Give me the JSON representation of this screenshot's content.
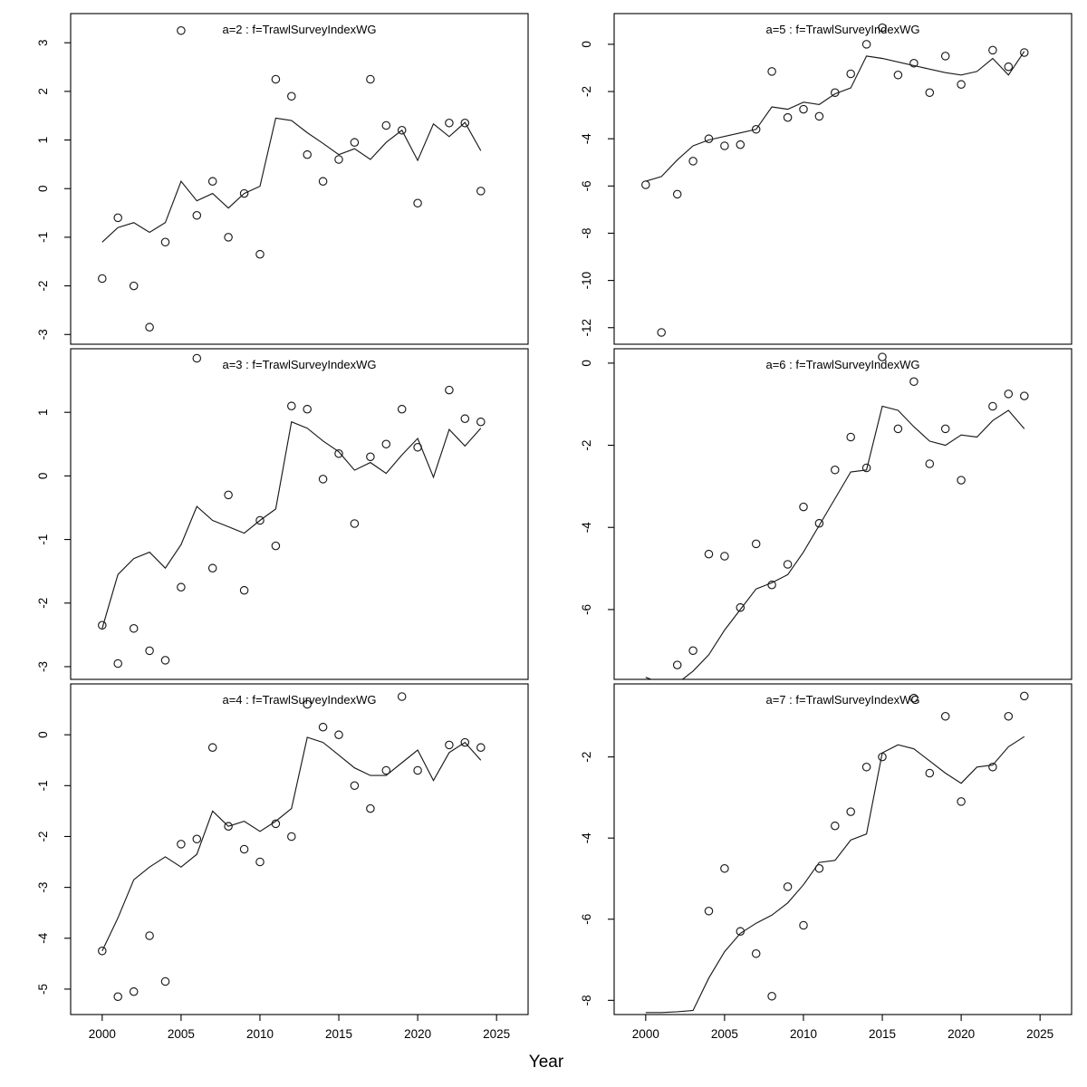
{
  "figure": {
    "xlabel": "Year",
    "background": "#ffffff",
    "colors": {
      "line": "#1a1a1a",
      "point_stroke": "#1a1a1a",
      "axis": "#000000",
      "panel_border": "#000000",
      "title_text": "#7d7d7d"
    },
    "x_tick_labels": [
      "2000",
      "2005",
      "2010",
      "2015",
      "2020",
      "2025"
    ]
  },
  "chart_data": {
    "type": "scatter",
    "description": "3x2 grid of age-specific survey index diagnostic panels: open-circle observations and fitted line per year",
    "x": [
      2000,
      2001,
      2002,
      2003,
      2004,
      2005,
      2006,
      2007,
      2008,
      2009,
      2010,
      2011,
      2012,
      2013,
      2014,
      2015,
      2016,
      2017,
      2018,
      2019,
      2020,
      2021,
      2022,
      2023,
      2024
    ],
    "xlim": [
      1998,
      2027
    ],
    "x_ticks": [
      2000,
      2005,
      2010,
      2015,
      2020,
      2025
    ],
    "xlabel": "Year",
    "legend": "none",
    "grid": "off",
    "panels": [
      {
        "title": "a=2  :  f=TrawlSurveyIndexWG",
        "row": 0,
        "col": 0,
        "ylim": [
          -3.2,
          3.6
        ],
        "y_ticks": [
          3,
          2,
          1,
          0,
          -1,
          -2,
          -3
        ],
        "obs": [
          -1.85,
          -0.6,
          -2.0,
          -2.85,
          -1.1,
          3.25,
          -0.55,
          0.15,
          -1.0,
          -0.1,
          -1.35,
          2.25,
          1.9,
          0.7,
          0.15,
          0.6,
          0.95,
          2.25,
          1.3,
          1.2,
          -0.3,
          null,
          1.35,
          1.35,
          -0.05
        ],
        "fit": [
          -1.1,
          -0.8,
          -0.7,
          -0.9,
          -0.7,
          0.15,
          -0.25,
          -0.1,
          -0.4,
          -0.1,
          0.05,
          1.45,
          1.4,
          1.15,
          0.93,
          0.7,
          0.82,
          0.6,
          0.95,
          1.2,
          0.58,
          1.33,
          1.07,
          1.36,
          0.78
        ]
      },
      {
        "title": "a=5  :  f=TrawlSurveyIndexWG",
        "row": 0,
        "col": 1,
        "ylim": [
          -12.7,
          1.3
        ],
        "y_ticks": [
          0,
          -2,
          -4,
          -6,
          -8,
          -10,
          -12
        ],
        "obs": [
          -5.95,
          -12.2,
          -6.35,
          -4.95,
          -4.0,
          -4.3,
          -4.25,
          -3.6,
          -1.15,
          -3.1,
          -2.75,
          -3.05,
          -2.05,
          -1.25,
          0.0,
          0.7,
          -1.3,
          -0.8,
          -2.05,
          -0.5,
          -1.7,
          null,
          -0.25,
          -0.95,
          -0.35
        ],
        "fit": [
          -5.8,
          -5.6,
          -4.9,
          -4.3,
          -4.05,
          -3.9,
          -3.75,
          -3.6,
          -2.65,
          -2.75,
          -2.45,
          -2.55,
          -2.1,
          -1.85,
          -0.5,
          -0.6,
          -0.75,
          -0.9,
          -1.05,
          -1.2,
          -1.3,
          -1.15,
          -0.6,
          -1.3,
          -0.3
        ]
      },
      {
        "title": "a=3  :  f=TrawlSurveyIndexWG",
        "row": 1,
        "col": 0,
        "ylim": [
          -3.2,
          2.0
        ],
        "y_ticks": [
          1,
          0,
          -1,
          -2,
          -3
        ],
        "obs": [
          -2.35,
          -2.95,
          -2.4,
          -2.75,
          -2.9,
          -1.75,
          1.85,
          -1.45,
          -0.3,
          -1.8,
          -0.7,
          -1.1,
          1.1,
          1.05,
          -0.05,
          0.35,
          -0.75,
          0.3,
          0.5,
          1.05,
          0.45,
          null,
          1.35,
          0.9,
          0.85
        ],
        "fit": [
          -2.4,
          -1.55,
          -1.3,
          -1.2,
          -1.45,
          -1.08,
          -0.48,
          -0.7,
          -0.8,
          -0.9,
          -0.7,
          -0.52,
          0.85,
          0.75,
          0.55,
          0.38,
          0.09,
          0.21,
          0.04,
          0.33,
          0.59,
          -0.02,
          0.73,
          0.47,
          0.75
        ]
      },
      {
        "title": "a=6  :  f=TrawlSurveyIndexWG",
        "row": 1,
        "col": 1,
        "ylim": [
          -7.7,
          0.35
        ],
        "y_ticks": [
          0,
          -2,
          -4,
          -6
        ],
        "obs": [
          null,
          null,
          -7.35,
          -7.0,
          -4.65,
          -4.7,
          -5.95,
          -4.4,
          -5.4,
          -4.9,
          -3.5,
          -3.9,
          -2.6,
          -1.8,
          -2.55,
          0.15,
          -1.6,
          -0.45,
          -2.45,
          -1.6,
          -2.85,
          null,
          -1.05,
          -0.75,
          -0.8
        ],
        "fit": [
          -7.65,
          -7.8,
          -7.8,
          -7.5,
          -7.1,
          -6.5,
          -6.0,
          -5.5,
          -5.35,
          -5.15,
          -4.6,
          -3.95,
          -3.3,
          -2.65,
          -2.6,
          -1.05,
          -1.15,
          -1.55,
          -1.9,
          -2.0,
          -1.75,
          -1.8,
          -1.4,
          -1.15,
          -1.6
        ]
      },
      {
        "title": "a=4  :  f=TrawlSurveyIndexWG",
        "row": 2,
        "col": 0,
        "ylim": [
          -5.5,
          1.0
        ],
        "y_ticks": [
          0,
          -1,
          -2,
          -3,
          -4,
          -5
        ],
        "obs": [
          -4.25,
          -5.15,
          -5.05,
          -3.95,
          -4.85,
          -2.15,
          -2.05,
          -0.25,
          -1.8,
          -2.25,
          -2.5,
          -1.75,
          -2.0,
          0.6,
          0.15,
          0.0,
          -1.0,
          -1.45,
          -0.7,
          0.75,
          -0.7,
          null,
          -0.2,
          -0.15,
          -0.25
        ],
        "fit": [
          -4.25,
          -3.6,
          -2.85,
          -2.6,
          -2.4,
          -2.6,
          -2.35,
          -1.5,
          -1.8,
          -1.7,
          -1.9,
          -1.7,
          -1.45,
          -0.05,
          -0.15,
          -0.4,
          -0.65,
          -0.8,
          -0.8,
          -0.55,
          -0.3,
          -0.9,
          -0.35,
          -0.15,
          -0.5
        ]
      },
      {
        "title": "a=7  :  f=TrawlSurveyIndexWG",
        "row": 2,
        "col": 1,
        "ylim": [
          -8.35,
          -0.2
        ],
        "y_ticks": [
          -2,
          -4,
          -6,
          -8
        ],
        "obs": [
          null,
          null,
          null,
          null,
          -5.8,
          -4.75,
          -6.3,
          -6.85,
          -7.9,
          -5.2,
          -6.15,
          -4.75,
          -3.7,
          -3.35,
          -2.25,
          -2.0,
          null,
          -0.55,
          -2.4,
          -1.0,
          -3.1,
          null,
          -2.25,
          -1.0,
          -0.5
        ],
        "fit": [
          -8.3,
          -8.3,
          -8.28,
          -8.25,
          -7.45,
          -6.8,
          -6.35,
          -6.1,
          -5.9,
          -5.6,
          -5.15,
          -4.6,
          -4.55,
          -4.05,
          -3.9,
          -1.9,
          -1.7,
          -1.8,
          -2.1,
          -2.4,
          -2.65,
          -2.25,
          -2.2,
          -1.75,
          -1.5
        ]
      }
    ]
  }
}
